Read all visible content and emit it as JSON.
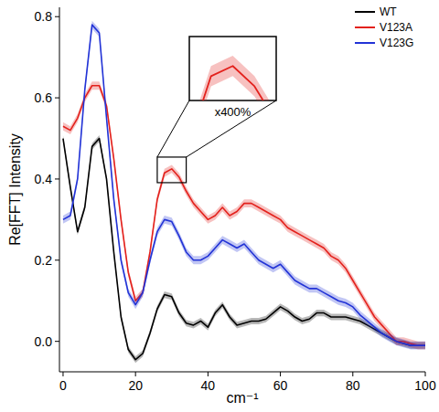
{
  "chart_data": {
    "type": "line",
    "x_label": "cm⁻¹",
    "y_label": "Re[FFT] Intensity",
    "x": [
      0,
      2,
      4,
      6,
      8,
      10,
      12,
      14,
      16,
      18,
      20,
      22,
      24,
      26,
      28,
      30,
      32,
      34,
      36,
      38,
      40,
      42,
      44,
      46,
      48,
      50,
      52,
      54,
      56,
      58,
      60,
      62,
      64,
      66,
      68,
      70,
      72,
      74,
      76,
      78,
      80,
      82,
      84,
      86,
      88,
      90,
      92,
      94,
      96,
      98,
      100
    ],
    "series": [
      {
        "name": "WT",
        "color": "#000000",
        "error": 0.008,
        "values": [
          0.5,
          0.38,
          0.27,
          0.33,
          0.48,
          0.5,
          0.4,
          0.22,
          0.06,
          -0.02,
          -0.045,
          -0.03,
          0.02,
          0.08,
          0.115,
          0.11,
          0.07,
          0.045,
          0.04,
          0.05,
          0.035,
          0.07,
          0.09,
          0.06,
          0.04,
          0.045,
          0.05,
          0.05,
          0.055,
          0.07,
          0.085,
          0.075,
          0.06,
          0.05,
          0.055,
          0.07,
          0.07,
          0.06,
          0.06,
          0.06,
          0.055,
          0.05,
          0.04,
          0.03,
          0.02,
          0.01,
          0.0,
          -0.005,
          -0.01,
          -0.01,
          -0.01
        ]
      },
      {
        "name": "V123A",
        "color": "#e3211c",
        "error": 0.01,
        "values": [
          0.53,
          0.52,
          0.55,
          0.6,
          0.63,
          0.63,
          0.58,
          0.45,
          0.3,
          0.17,
          0.1,
          0.12,
          0.22,
          0.35,
          0.415,
          0.425,
          0.405,
          0.37,
          0.34,
          0.32,
          0.3,
          0.31,
          0.33,
          0.31,
          0.32,
          0.34,
          0.34,
          0.33,
          0.32,
          0.31,
          0.3,
          0.28,
          0.27,
          0.26,
          0.25,
          0.24,
          0.23,
          0.21,
          0.2,
          0.18,
          0.15,
          0.12,
          0.09,
          0.06,
          0.04,
          0.02,
          0.0,
          0.0,
          -0.005,
          -0.01,
          -0.01
        ]
      },
      {
        "name": "V123G",
        "color": "#2233d6",
        "error": 0.01,
        "values": [
          0.3,
          0.31,
          0.4,
          0.62,
          0.78,
          0.76,
          0.55,
          0.35,
          0.2,
          0.12,
          0.09,
          0.12,
          0.2,
          0.27,
          0.3,
          0.295,
          0.26,
          0.22,
          0.2,
          0.2,
          0.21,
          0.23,
          0.25,
          0.24,
          0.23,
          0.24,
          0.22,
          0.2,
          0.19,
          0.18,
          0.19,
          0.17,
          0.15,
          0.14,
          0.13,
          0.13,
          0.12,
          0.11,
          0.1,
          0.095,
          0.085,
          0.065,
          0.05,
          0.035,
          0.02,
          0.01,
          0.0,
          -0.005,
          -0.01,
          -0.01,
          -0.01
        ]
      }
    ],
    "xlim": [
      -1,
      100
    ],
    "ylim": [
      -0.075,
      0.823
    ],
    "xticks": [
      0,
      20,
      40,
      60,
      80,
      100
    ],
    "yticks": [
      {
        "value": 0,
        "label": "0.0"
      },
      0.2,
      0.4,
      0.6,
      0.8
    ],
    "legend": "upper right",
    "grid": false,
    "inset": {
      "label": "x400%",
      "series": 1,
      "xlim": [
        26,
        34
      ],
      "ylim": [
        0.391,
        0.454
      ]
    }
  }
}
